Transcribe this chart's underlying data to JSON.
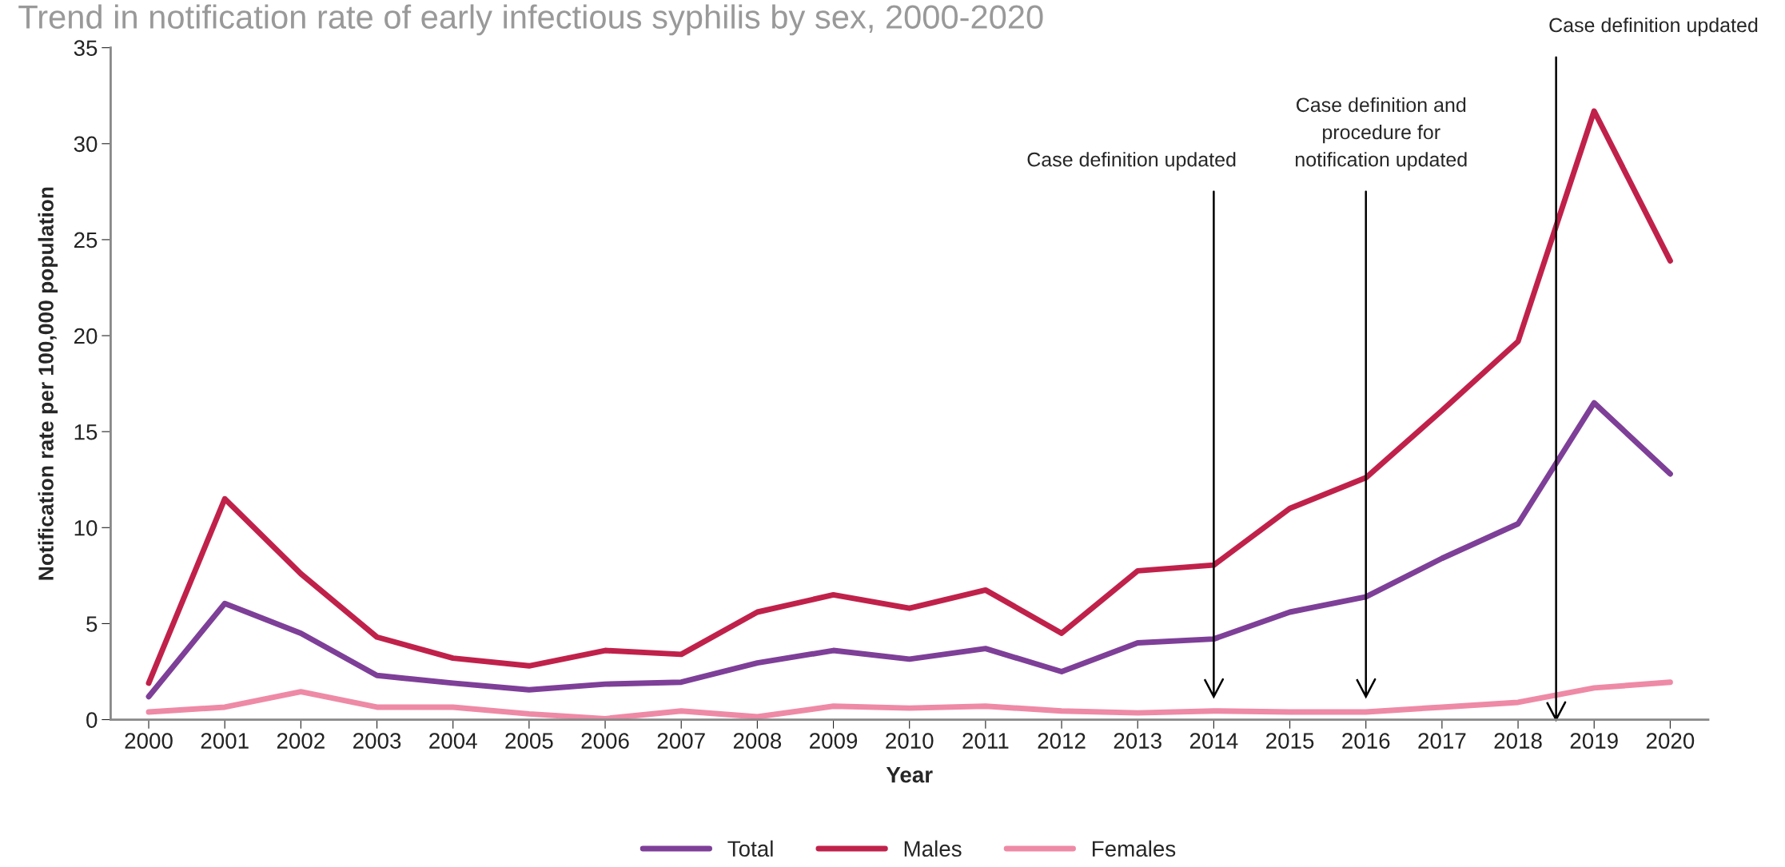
{
  "chart_data": {
    "type": "line",
    "title": "Trend in notification rate of early infectious syphilis by sex, 2000-2020",
    "xlabel": "Year",
    "ylabel": "Notification rate per 100,000 population",
    "x": [
      2000,
      2001,
      2002,
      2003,
      2004,
      2005,
      2006,
      2007,
      2008,
      2009,
      2010,
      2011,
      2012,
      2013,
      2014,
      2015,
      2016,
      2017,
      2018,
      2019,
      2020
    ],
    "series": [
      {
        "name": "Total",
        "color": "#7e3f98",
        "values": [
          1.2,
          6.05,
          4.5,
          2.3,
          1.9,
          1.55,
          1.85,
          1.95,
          2.95,
          3.6,
          3.15,
          3.7,
          2.5,
          4.0,
          4.2,
          5.6,
          6.4,
          8.4,
          10.2,
          16.5,
          12.8
        ]
      },
      {
        "name": "Males",
        "color": "#c0214a",
        "values": [
          1.9,
          11.5,
          7.6,
          4.3,
          3.2,
          2.8,
          3.6,
          3.4,
          5.6,
          6.5,
          5.8,
          6.75,
          4.5,
          7.75,
          8.05,
          11.0,
          12.6,
          16.1,
          19.7,
          31.7,
          23.9
        ]
      },
      {
        "name": "Females",
        "color": "#ee8aa6",
        "values": [
          0.4,
          0.65,
          1.45,
          0.65,
          0.65,
          0.3,
          0.05,
          0.45,
          0.15,
          0.7,
          0.6,
          0.7,
          0.45,
          0.35,
          0.45,
          0.4,
          0.4,
          0.65,
          0.9,
          1.65,
          1.95
        ]
      }
    ],
    "xlim": [
      1999.5,
      2020.5
    ],
    "xticks": [
      2000,
      2001,
      2002,
      2003,
      2004,
      2005,
      2006,
      2007,
      2008,
      2009,
      2010,
      2011,
      2012,
      2013,
      2014,
      2015,
      2016,
      2017,
      2018,
      2019,
      2020
    ],
    "ylim": [
      0,
      35
    ],
    "yticks": [
      0,
      5,
      10,
      15,
      20,
      25,
      30,
      35
    ],
    "ref_lines": [
      {
        "axis": "x",
        "value": 2014,
        "label": "Case definition updated",
        "color": "#000000"
      },
      {
        "axis": "x",
        "value": 2016,
        "label": "Case definition and\nprocedure for\nnotification updated",
        "color": "#000000"
      },
      {
        "axis": "x",
        "value": 2018.5,
        "label": "Case definition updated",
        "color": "#000000"
      }
    ],
    "legend": "bottom",
    "grid": false,
    "marker": "none",
    "line_style": "solid"
  }
}
